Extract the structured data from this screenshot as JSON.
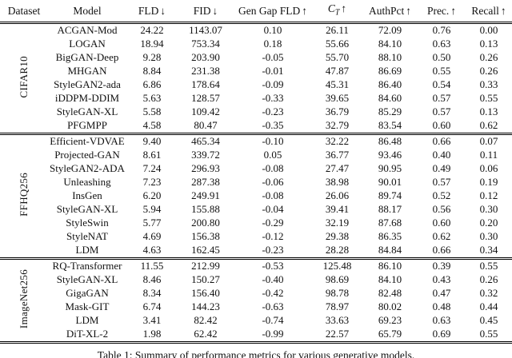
{
  "table": {
    "headers": [
      {
        "text": "Dataset"
      },
      {
        "text": "Model"
      },
      {
        "text": "FLD",
        "arrow": "↓"
      },
      {
        "text": "FID",
        "arrow": "↓"
      },
      {
        "text": "Gen Gap FLD",
        "arrow": "↑"
      },
      {
        "text": "C",
        "sub": "T",
        "arrow": "↑"
      },
      {
        "text": "AuthPct",
        "arrow": "↑"
      },
      {
        "text": "Prec.",
        "arrow": "↑"
      },
      {
        "text": "Recall",
        "arrow": "↑"
      }
    ],
    "sections": [
      {
        "dataset": "CIFAR10",
        "rows": [
          {
            "model": "ACGAN-Mod",
            "values": [
              "24.22",
              "1143.07",
              "0.10",
              "26.11",
              "72.09",
              "0.76",
              "0.00"
            ]
          },
          {
            "model": "LOGAN",
            "values": [
              "18.94",
              "753.34",
              "0.18",
              "55.66",
              "84.10",
              "0.63",
              "0.13"
            ]
          },
          {
            "model": "BigGAN-Deep",
            "values": [
              "9.28",
              "203.90",
              "-0.05",
              "55.70",
              "88.10",
              "0.50",
              "0.26"
            ]
          },
          {
            "model": "MHGAN",
            "values": [
              "8.84",
              "231.38",
              "-0.01",
              "47.87",
              "86.69",
              "0.55",
              "0.26"
            ]
          },
          {
            "model": "StyleGAN2-ada",
            "values": [
              "6.86",
              "178.64",
              "-0.09",
              "45.31",
              "86.40",
              "0.54",
              "0.33"
            ]
          },
          {
            "model": "iDDPM-DDIM",
            "values": [
              "5.63",
              "128.57",
              "-0.33",
              "39.65",
              "84.60",
              "0.57",
              "0.55"
            ]
          },
          {
            "model": "StyleGAN-XL",
            "values": [
              "5.58",
              "109.42",
              "-0.23",
              "36.79",
              "85.29",
              "0.57",
              "0.13"
            ]
          },
          {
            "model": "PFGMPP",
            "values": [
              "4.58",
              "80.47",
              "-0.35",
              "32.79",
              "83.54",
              "0.60",
              "0.62"
            ]
          }
        ]
      },
      {
        "dataset": "FFHQ256",
        "rows": [
          {
            "model": "Efficient-VDVAE",
            "values": [
              "9.40",
              "465.34",
              "-0.10",
              "32.22",
              "86.48",
              "0.66",
              "0.07"
            ]
          },
          {
            "model": "Projected-GAN",
            "values": [
              "8.61",
              "339.72",
              "0.05",
              "36.77",
              "93.46",
              "0.40",
              "0.11"
            ]
          },
          {
            "model": "StyleGAN2-ADA",
            "values": [
              "7.24",
              "296.93",
              "-0.08",
              "27.47",
              "90.95",
              "0.49",
              "0.06"
            ]
          },
          {
            "model": "Unleashing",
            "values": [
              "7.23",
              "287.38",
              "-0.06",
              "38.98",
              "90.01",
              "0.57",
              "0.19"
            ]
          },
          {
            "model": "InsGen",
            "values": [
              "6.20",
              "249.91",
              "-0.08",
              "26.06",
              "89.74",
              "0.52",
              "0.12"
            ]
          },
          {
            "model": "StyleGAN-XL",
            "values": [
              "5.94",
              "155.88",
              "-0.04",
              "39.41",
              "88.17",
              "0.56",
              "0.30"
            ]
          },
          {
            "model": "StyleSwin",
            "values": [
              "5.77",
              "200.80",
              "-0.29",
              "32.19",
              "87.68",
              "0.60",
              "0.20"
            ]
          },
          {
            "model": "StyleNAT",
            "values": [
              "4.69",
              "156.38",
              "-0.12",
              "29.38",
              "86.35",
              "0.62",
              "0.30"
            ]
          },
          {
            "model": "LDM",
            "values": [
              "4.63",
              "162.45",
              "-0.23",
              "28.28",
              "84.84",
              "0.66",
              "0.34"
            ]
          }
        ]
      },
      {
        "dataset": "ImageNet256",
        "rows": [
          {
            "model": "RQ-Transformer",
            "values": [
              "11.55",
              "212.99",
              "-0.53",
              "125.48",
              "86.10",
              "0.39",
              "0.55"
            ]
          },
          {
            "model": "StyleGAN-XL",
            "values": [
              "8.46",
              "150.27",
              "-0.40",
              "98.69",
              "84.10",
              "0.43",
              "0.26"
            ]
          },
          {
            "model": "GigaGAN",
            "values": [
              "8.34",
              "156.40",
              "-0.42",
              "98.78",
              "82.48",
              "0.47",
              "0.32"
            ]
          },
          {
            "model": "Mask-GIT",
            "values": [
              "6.74",
              "144.23",
              "-0.63",
              "78.97",
              "80.02",
              "0.48",
              "0.44"
            ]
          },
          {
            "model": "LDM",
            "values": [
              "3.41",
              "82.42",
              "-0.74",
              "33.63",
              "69.23",
              "0.63",
              "0.45"
            ]
          },
          {
            "model": "DiT-XL-2",
            "values": [
              "1.98",
              "62.42",
              "-0.99",
              "22.57",
              "65.79",
              "0.69",
              "0.55"
            ]
          }
        ]
      }
    ]
  },
  "caption": "Table 1: Summary of performance metrics for various generative models.",
  "colors": {
    "background": "#ffffff",
    "text": "#111111",
    "rule": "#000000"
  }
}
